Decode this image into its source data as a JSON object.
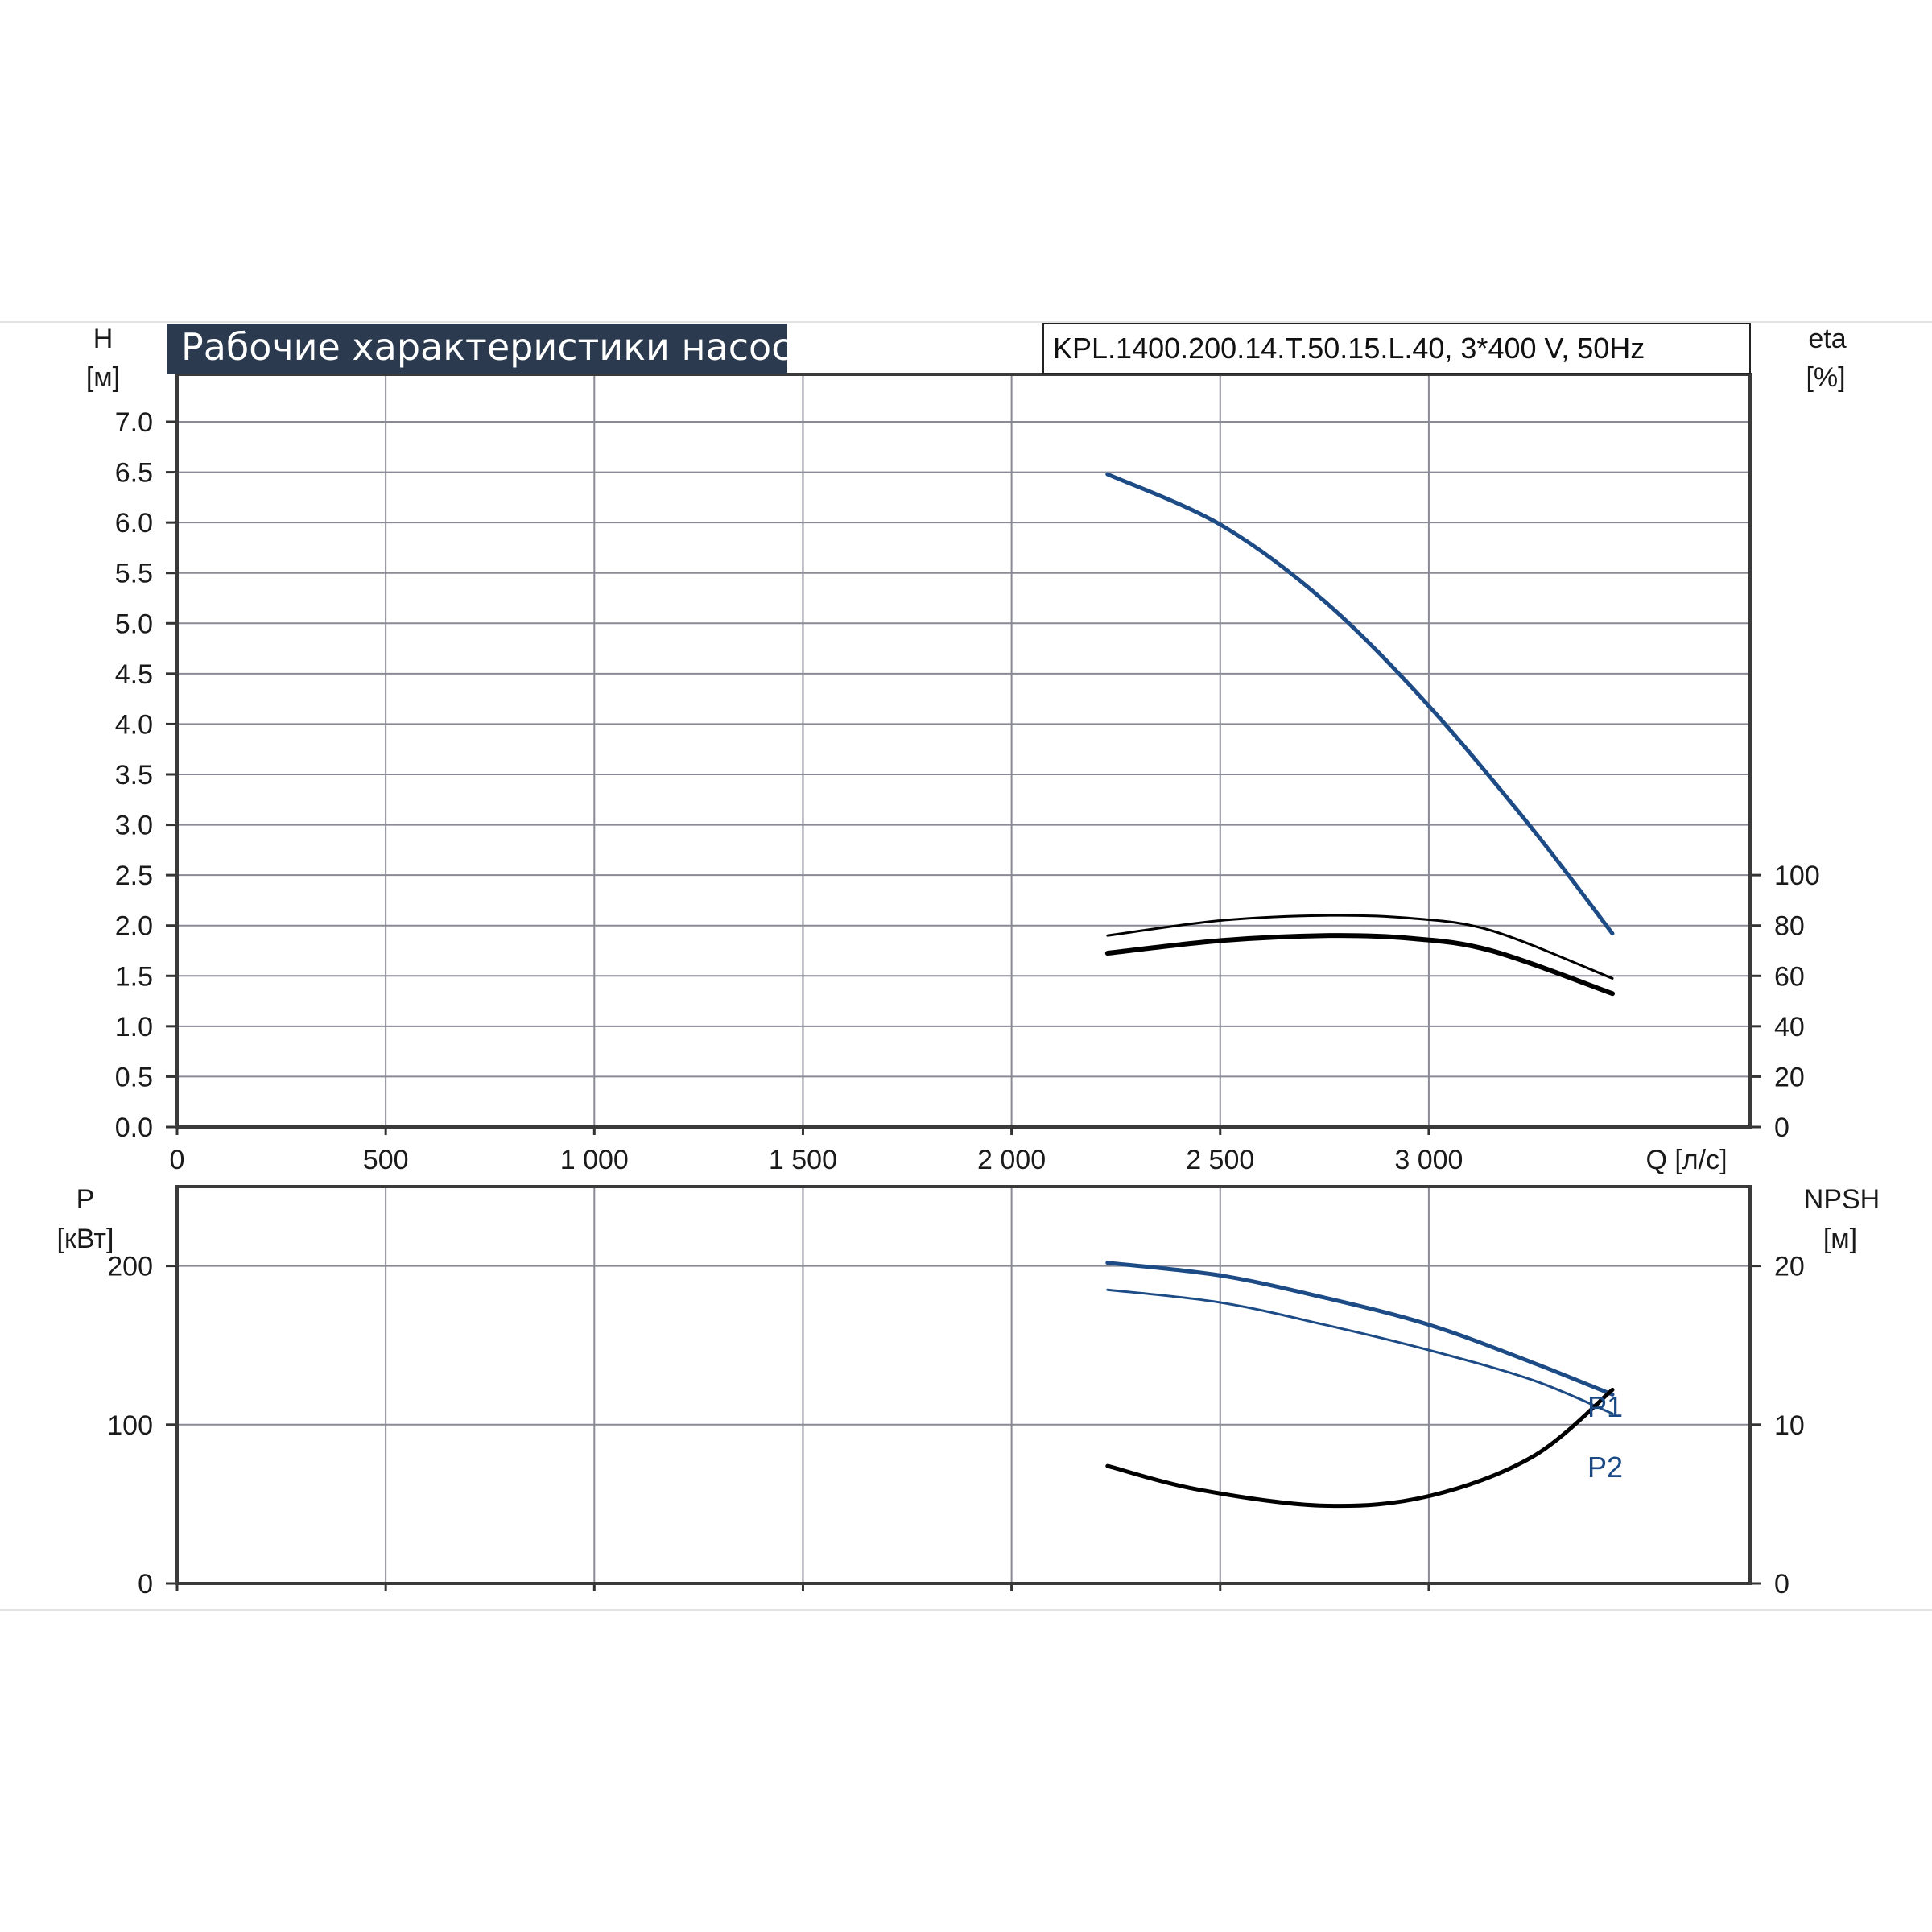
{
  "title": "Рабочие характеристики насоса",
  "model": "KPL.1400.200.14.T.50.15.L.40, 3*400 V, 50Hz",
  "colors": {
    "blue": "#1d4b86",
    "black": "#000000",
    "grid": "#8a8a96",
    "title_bg": "#2b3a4e"
  },
  "chart_data": [
    {
      "type": "line",
      "name": "head-efficiency",
      "x_axis": {
        "label": "Q [л/с]",
        "range": [
          0,
          3770
        ],
        "ticks": [
          0,
          500,
          1000,
          1500,
          2000,
          2500,
          3000
        ],
        "tick_labels": [
          "0",
          "500",
          "1 000",
          "1 500",
          "2 000",
          "2 500",
          "3 000"
        ]
      },
      "y_left": {
        "label_line1": "H",
        "label_line2": "[м]",
        "range": [
          0,
          7.0
        ],
        "ticks": [
          0.0,
          0.5,
          1.0,
          1.5,
          2.0,
          2.5,
          3.0,
          3.5,
          4.0,
          4.5,
          5.0,
          5.5,
          6.0,
          6.5,
          7.0
        ],
        "tick_labels": [
          "0.0",
          "0.5",
          "1.0",
          "1.5",
          "2.0",
          "2.5",
          "3.0",
          "3.5",
          "4.0",
          "4.5",
          "5.0",
          "5.5",
          "6.0",
          "6.5",
          "7.0"
        ]
      },
      "y_right": {
        "label_line1": "eta",
        "label_line2": "[%]",
        "range": [
          0,
          100
        ],
        "ticks": [
          0,
          20,
          40,
          60,
          80,
          100
        ],
        "tick_labels": [
          "0",
          "20",
          "40",
          "60",
          "80",
          "100"
        ]
      },
      "series": [
        {
          "axis": "left",
          "color": "blue",
          "width": 5,
          "x": [
            2230,
            2500,
            2750,
            3000,
            3250,
            3440
          ],
          "y": [
            6.48,
            5.98,
            5.22,
            4.18,
            2.95,
            1.92
          ]
        },
        {
          "axis": "right",
          "color": "black",
          "width": 3,
          "x": [
            2230,
            2500,
            2750,
            2950,
            3150,
            3440
          ],
          "y": [
            76,
            82,
            84,
            83,
            78,
            59
          ]
        },
        {
          "axis": "right",
          "color": "black",
          "width": 6,
          "x": [
            2230,
            2500,
            2750,
            2950,
            3150,
            3440
          ],
          "y": [
            69,
            74,
            76,
            75,
            70,
            53
          ]
        }
      ],
      "grid": true
    },
    {
      "type": "line",
      "name": "power-npsh",
      "x_axis": {
        "range": [
          0,
          3770
        ],
        "ticks": [
          0,
          500,
          1000,
          1500,
          2000,
          2500,
          3000
        ]
      },
      "y_left": {
        "label_line1": "P",
        "label_line2": "[кВт]",
        "range": [
          0,
          250
        ],
        "ticks": [
          0,
          100,
          200
        ],
        "tick_labels": [
          "0",
          "100",
          "200"
        ]
      },
      "y_right": {
        "label_line1": "NPSH",
        "label_line2": "[м]",
        "range": [
          0,
          25
        ],
        "ticks": [
          0,
          10,
          20
        ],
        "tick_labels": [
          "0",
          "10",
          "20"
        ]
      },
      "series": [
        {
          "name": "P1",
          "axis": "left",
          "color": "blue",
          "width": 5,
          "x": [
            2230,
            2500,
            2750,
            3000,
            3250,
            3440
          ],
          "y": [
            202,
            194,
            180,
            163,
            139,
            119
          ]
        },
        {
          "name": "P2",
          "axis": "left",
          "color": "blue",
          "width": 3,
          "x": [
            2230,
            2500,
            2750,
            3000,
            3250,
            3440
          ],
          "y": [
            185,
            177,
            163,
            147,
            128,
            107
          ]
        },
        {
          "axis": "right",
          "color": "black",
          "width": 5,
          "x": [
            2230,
            2450,
            2750,
            3000,
            3250,
            3440
          ],
          "y": [
            7.4,
            5.9,
            4.9,
            5.5,
            8.0,
            12.2
          ]
        }
      ],
      "series_labels": [
        "P1",
        "P2"
      ],
      "grid": true
    }
  ]
}
